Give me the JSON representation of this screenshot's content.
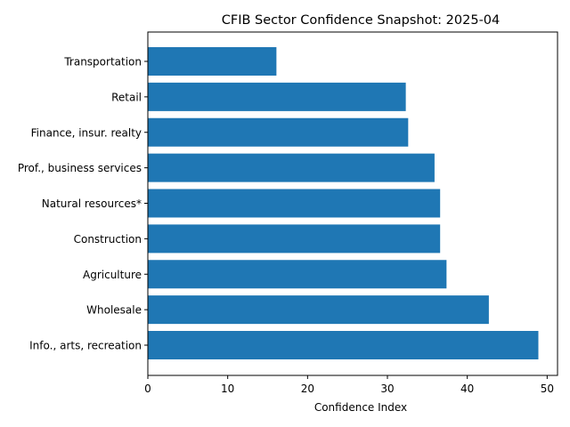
{
  "chart_data": {
    "type": "bar",
    "orientation": "horizontal",
    "title": "CFIB Sector Confidence Snapshot: 2025-04",
    "xlabel": "Confidence Index",
    "ylabel": "",
    "xlim": [
      0,
      51.3
    ],
    "xticks": [
      0,
      10,
      20,
      30,
      40,
      50
    ],
    "grid": false,
    "bar_color": "#1f77b4",
    "categories": [
      "Info., arts, recreation",
      "Wholesale",
      "Agriculture",
      "Construction",
      "Natural resources*",
      "Prof., business services",
      "Finance, insur. realty",
      "Retail",
      "Transportation"
    ],
    "values": [
      48.9,
      42.7,
      37.4,
      36.6,
      36.6,
      35.9,
      32.6,
      32.3,
      16.1
    ]
  }
}
